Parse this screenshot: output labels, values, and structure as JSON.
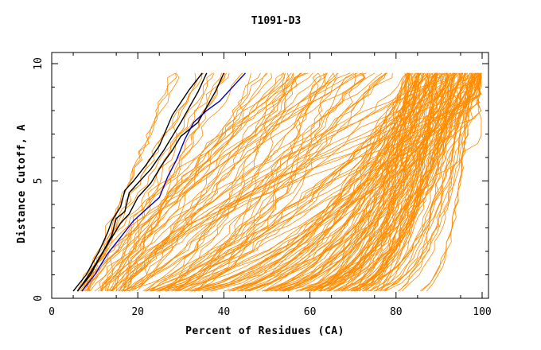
{
  "chart_data": {
    "type": "line",
    "title": "T1091-D3",
    "xlabel": "Percent of Residues (CA)",
    "ylabel": "Distance Cutoff, A",
    "xlim": [
      0,
      100
    ],
    "ylim": [
      0,
      10
    ],
    "x_ticks": [
      0,
      20,
      40,
      60,
      80,
      100
    ],
    "y_ticks": [
      0,
      5,
      10
    ],
    "grid": false,
    "colors": {
      "bulk": "#ff8c00",
      "highlight": "#000000",
      "best": "#0000cc"
    },
    "series": [
      {
        "name": "black-1",
        "color": "#000000",
        "x": [
          5,
          8,
          11,
          13,
          14,
          16,
          17,
          19,
          22,
          25,
          28,
          32,
          35
        ],
        "y": [
          0.3,
          1.0,
          2.0,
          2.8,
          3.3,
          3.9,
          4.6,
          5.0,
          5.7,
          6.5,
          7.8,
          8.9,
          9.6
        ]
      },
      {
        "name": "black-2",
        "color": "#000000",
        "x": [
          6,
          9,
          12,
          14,
          15,
          17,
          18,
          20,
          23,
          26,
          30,
          34,
          36
        ],
        "y": [
          0.3,
          1.0,
          2.0,
          2.7,
          3.4,
          3.7,
          4.5,
          4.9,
          5.5,
          6.3,
          7.5,
          8.8,
          9.6
        ]
      },
      {
        "name": "black-3",
        "color": "#000000",
        "x": [
          6,
          9,
          12,
          14,
          16,
          18,
          20,
          23,
          26,
          28,
          30,
          34,
          38,
          40
        ],
        "y": [
          0.3,
          1.1,
          2.0,
          2.6,
          3.2,
          3.6,
          4.3,
          4.9,
          5.8,
          6.3,
          6.9,
          7.5,
          8.8,
          9.6
        ]
      },
      {
        "name": "blue",
        "color": "#0000cc",
        "x": [
          7,
          10,
          13,
          16,
          19,
          22,
          25,
          27,
          29,
          31,
          33,
          36,
          39,
          42,
          45
        ],
        "y": [
          0.3,
          1.0,
          1.9,
          2.6,
          3.3,
          3.8,
          4.3,
          5.2,
          5.9,
          6.8,
          7.5,
          8.0,
          8.4,
          9.0,
          9.6
        ]
      }
    ]
  }
}
